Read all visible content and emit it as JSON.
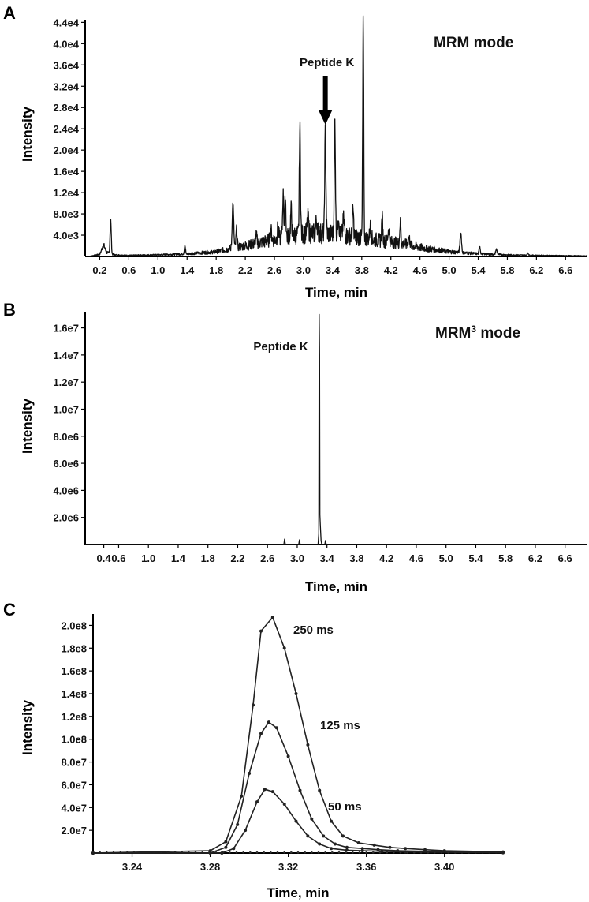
{
  "chart_data": [
    {
      "panel": "A",
      "type": "line",
      "annotation": "MRM mode",
      "peak_label": "Peptide K",
      "peak_time": 3.3,
      "xlabel": "Time, min",
      "ylabel": "Intensity",
      "xlim": [
        0.0,
        6.9
      ],
      "ylim": [
        0,
        44500
      ],
      "x_ticks": [
        0.2,
        0.6,
        1.0,
        1.4,
        1.8,
        2.2,
        2.6,
        3.0,
        3.4,
        3.8,
        4.2,
        4.6,
        5.0,
        5.4,
        5.8,
        6.2,
        6.6
      ],
      "x_tick_labels": [
        "0.2",
        "0.6",
        "1.0",
        "1.4",
        "1.8",
        "2.2",
        "2.6",
        "3.0",
        "3.4",
        "3.8",
        "4.2",
        "4.6",
        "5.0",
        "5.4",
        "5.8",
        "6.2",
        "6.6"
      ],
      "y_ticks": [
        4000,
        8000,
        12000,
        16000,
        20000,
        24000,
        28000,
        32000,
        36000,
        40000,
        44000
      ],
      "y_tick_labels": [
        "4.0e3",
        "8.0e3",
        "1.2e4",
        "1.6e4",
        "2.0e4",
        "2.4e4",
        "2.8e4",
        "3.2e4",
        "3.6e4",
        "4.0e4",
        "4.4e4"
      ],
      "baseline": [
        [
          0.05,
          0
        ],
        [
          0.2,
          400
        ],
        [
          0.25,
          1200
        ],
        [
          0.3,
          700
        ],
        [
          0.4,
          300
        ],
        [
          0.6,
          200
        ],
        [
          1.0,
          300
        ],
        [
          1.4,
          500
        ],
        [
          1.8,
          900
        ],
        [
          2.0,
          1500
        ],
        [
          2.2,
          2000
        ],
        [
          2.4,
          2600
        ],
        [
          2.6,
          3200
        ],
        [
          2.8,
          3800
        ],
        [
          3.0,
          4200
        ],
        [
          3.2,
          4400
        ],
        [
          3.4,
          4200
        ],
        [
          3.6,
          3900
        ],
        [
          3.8,
          3500
        ],
        [
          4.0,
          3100
        ],
        [
          4.2,
          2700
        ],
        [
          4.4,
          2300
        ],
        [
          4.6,
          1700
        ],
        [
          4.8,
          1300
        ],
        [
          5.0,
          900
        ],
        [
          5.2,
          700
        ],
        [
          5.4,
          500
        ],
        [
          5.6,
          400
        ],
        [
          5.8,
          300
        ],
        [
          6.0,
          250
        ],
        [
          6.2,
          200
        ],
        [
          6.6,
          150
        ],
        [
          6.9,
          100
        ]
      ],
      "peaks": [
        {
          "t": 0.25,
          "h": 1000,
          "w": 0.02
        },
        {
          "t": 0.35,
          "h": 6500,
          "w": 0.008
        },
        {
          "t": 1.37,
          "h": 1500,
          "w": 0.008
        },
        {
          "t": 2.03,
          "h": 8500,
          "w": 0.01
        },
        {
          "t": 2.08,
          "h": 3500,
          "w": 0.008
        },
        {
          "t": 2.35,
          "h": 1500,
          "w": 0.01
        },
        {
          "t": 2.55,
          "h": 2000,
          "w": 0.01
        },
        {
          "t": 2.65,
          "h": 2500,
          "w": 0.008
        },
        {
          "t": 2.72,
          "h": 8000,
          "w": 0.008
        },
        {
          "t": 2.75,
          "h": 7500,
          "w": 0.008
        },
        {
          "t": 2.83,
          "h": 5000,
          "w": 0.008
        },
        {
          "t": 2.95,
          "h": 20000,
          "w": 0.008
        },
        {
          "t": 3.06,
          "h": 3000,
          "w": 0.01
        },
        {
          "t": 3.18,
          "h": 2500,
          "w": 0.01
        },
        {
          "t": 3.3,
          "h": 19500,
          "w": 0.008
        },
        {
          "t": 3.43,
          "h": 21500,
          "w": 0.008
        },
        {
          "t": 3.48,
          "h": 4000,
          "w": 0.008
        },
        {
          "t": 3.55,
          "h": 3000,
          "w": 0.01
        },
        {
          "t": 3.68,
          "h": 5000,
          "w": 0.008
        },
        {
          "t": 3.82,
          "h": 40500,
          "w": 0.007
        },
        {
          "t": 3.92,
          "h": 2500,
          "w": 0.01
        },
        {
          "t": 4.08,
          "h": 4500,
          "w": 0.008
        },
        {
          "t": 4.17,
          "h": 2500,
          "w": 0.01
        },
        {
          "t": 4.33,
          "h": 4000,
          "w": 0.008
        },
        {
          "t": 4.45,
          "h": 1500,
          "w": 0.01
        },
        {
          "t": 5.16,
          "h": 3800,
          "w": 0.01
        },
        {
          "t": 5.42,
          "h": 1500,
          "w": 0.008
        },
        {
          "t": 5.65,
          "h": 1000,
          "w": 0.01
        },
        {
          "t": 6.08,
          "h": 400,
          "w": 0.01
        }
      ]
    },
    {
      "panel": "B",
      "type": "line",
      "annotation_main": "MRM",
      "annotation_superscript": "3",
      "annotation_suffix": " mode",
      "peak_label": "Peptide K",
      "peak_time": 3.3,
      "xlabel": "Time, min",
      "ylabel": "Intensity",
      "xlim": [
        0.15,
        6.9
      ],
      "ylim": [
        0,
        17200000
      ],
      "x_ticks": [
        0.4,
        0.6,
        1.0,
        1.4,
        1.8,
        2.2,
        2.6,
        3.0,
        3.4,
        3.8,
        4.2,
        4.6,
        5.0,
        5.4,
        5.8,
        6.2,
        6.6
      ],
      "x_tick_labels": [
        "0.4",
        "0.6",
        "1.0",
        "1.4",
        "1.8",
        "2.2",
        "2.6",
        "3.0",
        "3.4",
        "3.8",
        "4.2",
        "4.6",
        "5.0",
        "5.4",
        "5.8",
        "6.2",
        "6.6"
      ],
      "y_ticks": [
        2000000,
        4000000,
        6000000,
        8000000,
        10000000,
        12000000,
        14000000,
        16000000
      ],
      "y_tick_labels": [
        "2.0e6",
        "4.0e6",
        "6.0e6",
        "8.0e6",
        "1.0e7",
        "1.2e7",
        "1.4e7",
        "1.6e7"
      ],
      "points": [
        [
          0.15,
          0
        ],
        [
          2.82,
          0
        ],
        [
          2.83,
          400000
        ],
        [
          2.84,
          0
        ],
        [
          3.02,
          0
        ],
        [
          3.03,
          350000
        ],
        [
          3.04,
          0
        ],
        [
          3.28,
          0
        ],
        [
          3.29,
          800000
        ],
        [
          3.295,
          17000000
        ],
        [
          3.3,
          14000000
        ],
        [
          3.305,
          2200000
        ],
        [
          3.31,
          1500000
        ],
        [
          3.32,
          300000
        ],
        [
          3.33,
          0
        ],
        [
          3.37,
          0
        ],
        [
          3.38,
          300000
        ],
        [
          3.39,
          0
        ],
        [
          6.9,
          0
        ]
      ]
    },
    {
      "panel": "C",
      "type": "line",
      "xlabel": "Time, min",
      "ylabel": "Intensity",
      "xlim": [
        3.22,
        3.43
      ],
      "ylim": [
        0,
        210000000
      ],
      "x_ticks": [
        3.24,
        3.28,
        3.32,
        3.36,
        3.4
      ],
      "x_tick_labels": [
        "3.24",
        "3.28",
        "3.32",
        "3.36",
        "3.40"
      ],
      "y_ticks": [
        20000000,
        40000000,
        60000000,
        80000000,
        100000000,
        120000000,
        140000000,
        160000000,
        180000000,
        200000000
      ],
      "y_tick_labels": [
        "2.0e7",
        "4.0e7",
        "6.0e7",
        "8.0e7",
        "1.0e8",
        "1.2e8",
        "1.4e8",
        "1.6e8",
        "1.8e8",
        "2.0e8"
      ],
      "series": [
        {
          "name": "250 ms",
          "x": [
            3.22,
            3.28,
            3.288,
            3.296,
            3.302,
            3.306,
            3.312,
            3.318,
            3.324,
            3.33,
            3.336,
            3.342,
            3.348,
            3.356,
            3.364,
            3.372,
            3.38,
            3.39,
            3.4,
            3.43
          ],
          "y": [
            0,
            2000000,
            10000000,
            50000000,
            130000000,
            195000000,
            207000000,
            180000000,
            140000000,
            95000000,
            55000000,
            28000000,
            15000000,
            9000000,
            7000000,
            5000000,
            4000000,
            3000000,
            2000000,
            1000000
          ]
        },
        {
          "name": "125 ms",
          "x": [
            3.22,
            3.28,
            3.288,
            3.294,
            3.3,
            3.306,
            3.31,
            3.314,
            3.32,
            3.326,
            3.332,
            3.338,
            3.344,
            3.35,
            3.358,
            3.366,
            3.376,
            3.39,
            3.43
          ],
          "y": [
            0,
            0,
            5000000,
            25000000,
            70000000,
            105000000,
            115000000,
            110000000,
            85000000,
            55000000,
            30000000,
            15000000,
            8000000,
            5000000,
            4000000,
            3000000,
            2000000,
            1500000,
            500000
          ]
        },
        {
          "name": "50 ms",
          "x": [
            3.22,
            3.286,
            3.292,
            3.298,
            3.304,
            3.308,
            3.312,
            3.318,
            3.324,
            3.33,
            3.336,
            3.342,
            3.35,
            3.358,
            3.368,
            3.38,
            3.43
          ],
          "y": [
            0,
            0,
            4000000,
            20000000,
            45000000,
            56000000,
            54000000,
            43000000,
            28000000,
            15000000,
            8000000,
            4000000,
            2500000,
            2000000,
            1500000,
            1000000,
            300000
          ]
        }
      ]
    }
  ]
}
